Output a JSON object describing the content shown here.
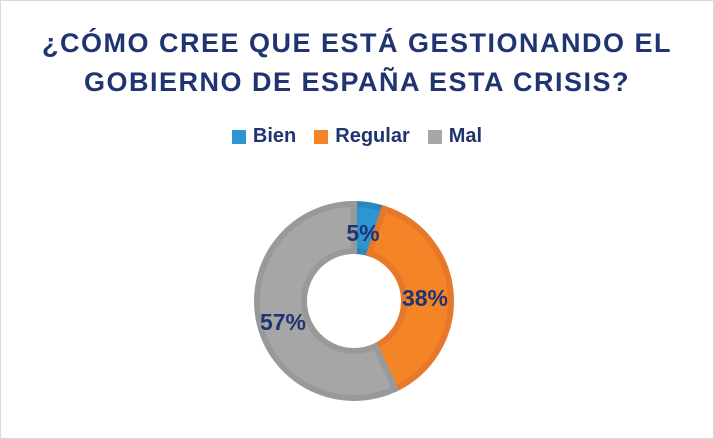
{
  "chart_data": {
    "type": "pie",
    "donut": true,
    "title": [
      "¿CÓMO CREE QUE ESTÁ GESTIONANDO EL",
      "GOBIERNO DE ESPAÑA ESTA CRISIS?"
    ],
    "categories": [
      "Bien",
      "Regular",
      "Mal"
    ],
    "values": [
      5,
      38,
      57
    ],
    "labels": [
      "5%",
      "38%",
      "57%"
    ],
    "colors": [
      "#2e95d3",
      "#f58426",
      "#a6a6a6"
    ],
    "edge_colors": [
      "#2a86be",
      "#e5782a",
      "#999999"
    ],
    "legend_position": "top",
    "label_color": "#1f3470"
  }
}
